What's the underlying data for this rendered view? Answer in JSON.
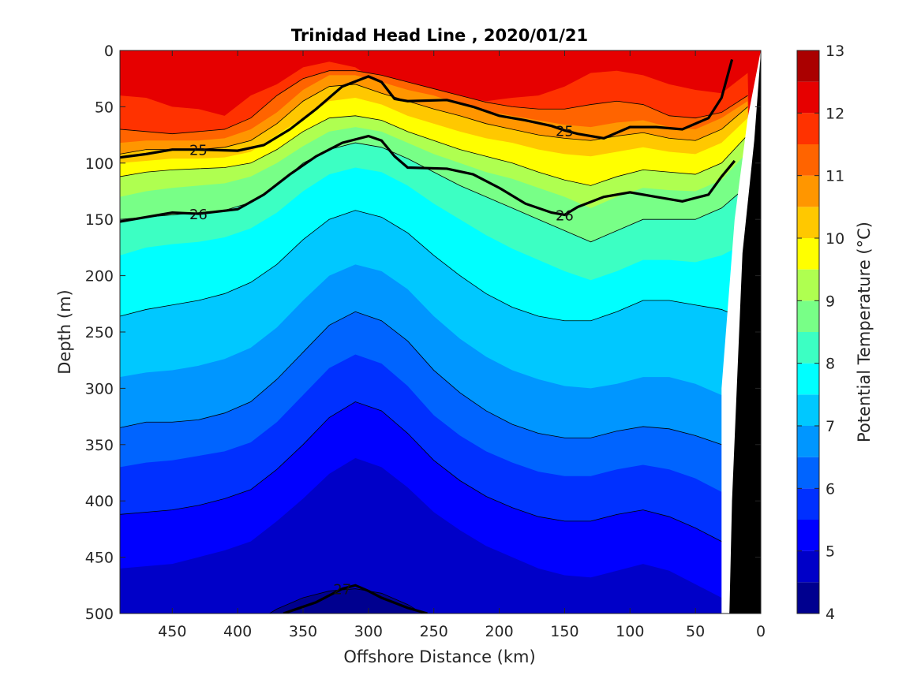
{
  "chart_data": {
    "type": "contour",
    "title": "Trinidad Head Line , 2020/01/21",
    "xlabel": "Offshore Distance (km)",
    "ylabel": "Depth (m)",
    "xlim": [
      490,
      0
    ],
    "ylim": [
      0,
      500
    ],
    "y_reversed": true,
    "x_ticks": [
      "450",
      "400",
      "350",
      "300",
      "250",
      "200",
      "150",
      "100",
      "50",
      "0"
    ],
    "x_tick_values": [
      450,
      400,
      350,
      300,
      250,
      200,
      150,
      100,
      50,
      0
    ],
    "y_ticks": [
      "0",
      "50",
      "100",
      "150",
      "200",
      "250",
      "300",
      "350",
      "400",
      "450",
      "500"
    ],
    "y_tick_values": [
      0,
      50,
      100,
      150,
      200,
      250,
      300,
      350,
      400,
      450,
      500
    ],
    "colorbar": {
      "label": "Potential Temperature (°C)",
      "range": [
        4,
        13
      ],
      "ticks": [
        "4",
        "5",
        "6",
        "7",
        "8",
        "9",
        "10",
        "11",
        "12",
        "13"
      ],
      "tick_values": [
        4,
        5,
        6,
        7,
        8,
        9,
        10,
        11,
        12,
        13
      ],
      "levels": [
        4,
        4.5,
        5,
        5.5,
        6,
        6.5,
        7,
        7.5,
        8,
        8.5,
        9,
        9.5,
        10,
        10.5,
        11,
        11.5,
        12,
        12.5,
        13
      ],
      "colors": [
        "#00008f",
        "#0000c8",
        "#0000ff",
        "#0030ff",
        "#0064ff",
        "#0096ff",
        "#00c8ff",
        "#00ffff",
        "#3cffc3",
        "#78ff87",
        "#afff50",
        "#ffff00",
        "#ffc800",
        "#ff9600",
        "#ff6400",
        "#ff3200",
        "#e60000",
        "#aa0000"
      ]
    },
    "temperature_bands": [
      {
        "level": 12,
        "depth": [
          40,
          42,
          50,
          52,
          58,
          40,
          30,
          15,
          10,
          15,
          30,
          38,
          40,
          42,
          45,
          42,
          40,
          32,
          20,
          18,
          22,
          30,
          35,
          38,
          20
        ]
      },
      {
        "level": 11.5,
        "depth": [
          70,
          72,
          74,
          72,
          70,
          60,
          40,
          25,
          18,
          18,
          22,
          28,
          34,
          40,
          46,
          50,
          52,
          52,
          48,
          45,
          48,
          58,
          60,
          55,
          40
        ]
      },
      {
        "level": 11,
        "depth": [
          82,
          80,
          80,
          80,
          78,
          70,
          55,
          35,
          22,
          22,
          28,
          35,
          40,
          48,
          54,
          58,
          62,
          66,
          68,
          64,
          62,
          68,
          70,
          60,
          45
        ]
      },
      {
        "level": 10.5,
        "depth": [
          92,
          88,
          88,
          88,
          86,
          80,
          65,
          45,
          32,
          30,
          38,
          45,
          52,
          58,
          65,
          70,
          75,
          78,
          80,
          76,
          73,
          78,
          80,
          70,
          50
        ]
      },
      {
        "level": 10,
        "depth": [
          100,
          98,
          96,
          96,
          95,
          90,
          75,
          60,
          45,
          42,
          48,
          58,
          65,
          72,
          78,
          82,
          88,
          92,
          94,
          90,
          86,
          90,
          92,
          82,
          60
        ]
      },
      {
        "level": 9.5,
        "depth": [
          112,
          108,
          106,
          105,
          104,
          100,
          88,
          72,
          60,
          58,
          62,
          72,
          80,
          88,
          94,
          100,
          108,
          115,
          120,
          112,
          106,
          108,
          110,
          100,
          75
        ]
      },
      {
        "level": 9,
        "depth": [
          130,
          125,
          122,
          120,
          118,
          112,
          100,
          85,
          72,
          68,
          72,
          82,
          92,
          100,
          108,
          114,
          122,
          130,
          140,
          130,
          122,
          124,
          125,
          115,
          90
        ]
      },
      {
        "level": 8.5,
        "depth": [
          150,
          148,
          146,
          144,
          142,
          135,
          120,
          100,
          88,
          82,
          86,
          96,
          108,
          120,
          130,
          140,
          150,
          160,
          170,
          160,
          150,
          150,
          150,
          140,
          120
        ]
      },
      {
        "level": 8,
        "depth": [
          182,
          175,
          172,
          170,
          166,
          158,
          144,
          125,
          110,
          104,
          108,
          120,
          136,
          150,
          164,
          176,
          186,
          196,
          204,
          196,
          186,
          186,
          188,
          182,
          170
        ]
      },
      {
        "level": 7.5,
        "depth": [
          236,
          230,
          226,
          222,
          216,
          206,
          190,
          168,
          150,
          142,
          148,
          162,
          182,
          200,
          216,
          228,
          236,
          240,
          240,
          232,
          222,
          222,
          226,
          230,
          240
        ]
      },
      {
        "level": 7,
        "depth": [
          290,
          286,
          284,
          280,
          274,
          264,
          246,
          222,
          200,
          190,
          196,
          212,
          236,
          256,
          272,
          284,
          292,
          298,
          300,
          296,
          290,
          290,
          296,
          306,
          320
        ]
      },
      {
        "level": 6.5,
        "depth": [
          335,
          330,
          330,
          328,
          322,
          312,
          292,
          268,
          244,
          232,
          240,
          258,
          284,
          304,
          320,
          332,
          340,
          344,
          344,
          338,
          334,
          336,
          342,
          350,
          362
        ]
      },
      {
        "level": 6,
        "depth": [
          370,
          366,
          364,
          360,
          356,
          348,
          330,
          306,
          282,
          270,
          278,
          298,
          324,
          342,
          356,
          366,
          374,
          378,
          378,
          372,
          368,
          372,
          380,
          392,
          405
        ]
      },
      {
        "level": 5.5,
        "depth": [
          412,
          410,
          408,
          404,
          398,
          390,
          372,
          350,
          326,
          312,
          320,
          340,
          364,
          382,
          396,
          406,
          414,
          418,
          418,
          412,
          408,
          414,
          424,
          436,
          450
        ]
      },
      {
        "level": 5,
        "depth": [
          460,
          458,
          456,
          450,
          444,
          436,
          418,
          398,
          376,
          362,
          370,
          388,
          410,
          426,
          440,
          450,
          460,
          466,
          468,
          462,
          456,
          462,
          474,
          486,
          498
        ]
      },
      {
        "level": 4.5,
        "depth": [
          520,
          520,
          520,
          520,
          520,
          510,
          496,
          486,
          480,
          478,
          482,
          492,
          506,
          520,
          520,
          520,
          520,
          520,
          520,
          520,
          520,
          520,
          520,
          520,
          520
        ]
      }
    ],
    "band_x": [
      490,
      470,
      450,
      430,
      410,
      390,
      370,
      350,
      330,
      310,
      290,
      270,
      250,
      230,
      210,
      190,
      170,
      150,
      130,
      110,
      90,
      70,
      50,
      30,
      10
    ],
    "density_contours": [
      {
        "label": "25",
        "bold": true,
        "x": [
          490,
          470,
          450,
          430,
          400,
          380,
          360,
          340,
          320,
          300,
          290,
          280,
          270,
          240,
          220,
          200,
          180,
          160,
          150,
          140,
          120,
          100,
          80,
          60,
          40,
          30,
          22
        ],
        "depth": [
          95,
          92,
          88,
          88,
          89,
          84,
          70,
          52,
          32,
          23,
          28,
          43,
          45,
          44,
          50,
          58,
          62,
          67,
          71,
          74,
          78,
          68,
          68,
          70,
          60,
          42,
          8
        ]
      },
      {
        "label": "26",
        "bold": true,
        "x": [
          490,
          470,
          450,
          430,
          400,
          380,
          360,
          340,
          320,
          300,
          290,
          280,
          270,
          240,
          220,
          200,
          180,
          160,
          150,
          140,
          120,
          100,
          80,
          60,
          40,
          30,
          20
        ],
        "depth": [
          152,
          148,
          144,
          145,
          141,
          128,
          110,
          94,
          82,
          76,
          80,
          94,
          104,
          105,
          110,
          122,
          136,
          144,
          146,
          139,
          130,
          126,
          130,
          134,
          128,
          112,
          98
        ]
      },
      {
        "label": "27",
        "bold": true,
        "x": [
          365,
          340,
          320,
          310,
          300,
          290,
          270,
          255
        ],
        "depth": [
          500,
          490,
          478,
          475,
          480,
          486,
          495,
          500
        ]
      }
    ],
    "bathymetry_x": [
      0,
      10,
      20,
      30,
      30,
      24,
      22
    ],
    "bathymetry_depth": [
      0,
      60,
      150,
      300,
      500,
      500,
      470
    ]
  }
}
